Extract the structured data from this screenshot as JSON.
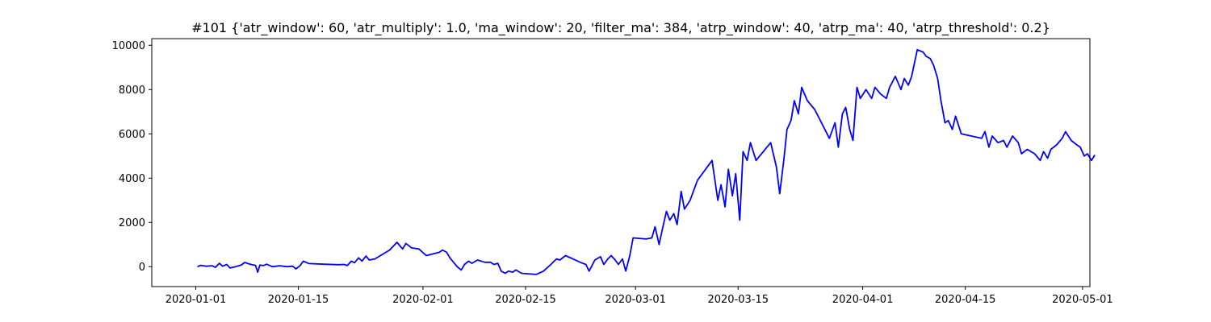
{
  "chart_data": {
    "type": "line",
    "title": "#101 {'atr_window': 60, 'atr_multiply': 1.0, 'ma_window': 20, 'filter_ma': 384, 'atrp_window': 40, 'atrp_ma': 40, 'atrp_threshold': 0.2}",
    "xlabel": "",
    "ylabel": "",
    "xlim": [
      "2019-12-26",
      "2020-05-02"
    ],
    "ylim": [
      -900,
      10300
    ],
    "grid": false,
    "legend": false,
    "series_color": "#0000ff",
    "x_ticks": [
      "2020-01-01",
      "2020-01-15",
      "2020-02-01",
      "2020-02-15",
      "2020-03-01",
      "2020-03-15",
      "2020-04-01",
      "2020-04-15",
      "2020-05-01"
    ],
    "y_ticks": [
      0,
      2000,
      4000,
      6000,
      8000,
      10000
    ],
    "series": [
      {
        "points": [
          [
            "2020-01-01",
            0
          ],
          [
            "2020-01-01",
            60
          ],
          [
            "2020-01-02",
            20
          ],
          [
            "2020-01-03",
            40
          ],
          [
            "2020-01-03",
            -30
          ],
          [
            "2020-01-04",
            150
          ],
          [
            "2020-01-04",
            20
          ],
          [
            "2020-01-05",
            100
          ],
          [
            "2020-01-05",
            -60
          ],
          [
            "2020-01-06",
            0
          ],
          [
            "2020-01-07",
            80
          ],
          [
            "2020-01-07",
            190
          ],
          [
            "2020-01-08",
            130
          ],
          [
            "2020-01-08",
            90
          ],
          [
            "2020-01-09",
            60
          ],
          [
            "2020-01-09",
            -250
          ],
          [
            "2020-01-09",
            70
          ],
          [
            "2020-01-10",
            50
          ],
          [
            "2020-01-10",
            110
          ],
          [
            "2020-01-11",
            0
          ],
          [
            "2020-01-12",
            40
          ],
          [
            "2020-01-13",
            0
          ],
          [
            "2020-01-14",
            20
          ],
          [
            "2020-01-14",
            -100
          ],
          [
            "2020-01-15",
            40
          ],
          [
            "2020-01-15",
            250
          ],
          [
            "2020-01-16",
            140
          ],
          [
            "2020-01-18",
            110
          ],
          [
            "2020-01-20",
            90
          ],
          [
            "2020-01-21",
            100
          ],
          [
            "2020-01-21",
            50
          ],
          [
            "2020-01-22",
            250
          ],
          [
            "2020-01-22",
            180
          ],
          [
            "2020-01-23",
            400
          ],
          [
            "2020-01-23",
            250
          ],
          [
            "2020-01-24",
            480
          ],
          [
            "2020-01-24",
            300
          ],
          [
            "2020-01-25",
            350
          ],
          [
            "2020-01-27",
            750
          ],
          [
            "2020-01-28",
            1100
          ],
          [
            "2020-01-29",
            800
          ],
          [
            "2020-01-29",
            1050
          ],
          [
            "2020-01-30",
            850
          ],
          [
            "2020-01-31",
            800
          ],
          [
            "2020-02-01",
            500
          ],
          [
            "2020-02-03",
            650
          ],
          [
            "2020-02-03",
            750
          ],
          [
            "2020-02-04",
            650
          ],
          [
            "2020-02-04",
            400
          ],
          [
            "2020-02-05",
            180
          ],
          [
            "2020-02-05",
            0
          ],
          [
            "2020-02-06",
            -150
          ],
          [
            "2020-02-06",
            100
          ],
          [
            "2020-02-07",
            250
          ],
          [
            "2020-02-07",
            150
          ],
          [
            "2020-02-08",
            300
          ],
          [
            "2020-02-09",
            200
          ],
          [
            "2020-02-10",
            200
          ],
          [
            "2020-02-10",
            100
          ],
          [
            "2020-02-11",
            150
          ],
          [
            "2020-02-11",
            -200
          ],
          [
            "2020-02-12",
            -300
          ],
          [
            "2020-02-12",
            -200
          ],
          [
            "2020-02-13",
            -250
          ],
          [
            "2020-02-13",
            -150
          ],
          [
            "2020-02-14",
            -300
          ],
          [
            "2020-02-16",
            -350
          ],
          [
            "2020-02-17",
            -200
          ],
          [
            "2020-02-18",
            100
          ],
          [
            "2020-02-19",
            350
          ],
          [
            "2020-02-19",
            300
          ],
          [
            "2020-02-20",
            500
          ],
          [
            "2020-02-21",
            350
          ],
          [
            "2020-02-22",
            200
          ],
          [
            "2020-02-23",
            100
          ],
          [
            "2020-02-23",
            -200
          ],
          [
            "2020-02-24",
            300
          ],
          [
            "2020-02-25",
            450
          ],
          [
            "2020-02-25",
            100
          ],
          [
            "2020-02-26",
            350
          ],
          [
            "2020-02-26",
            500
          ],
          [
            "2020-02-27",
            300
          ],
          [
            "2020-02-27",
            100
          ],
          [
            "2020-02-28",
            350
          ],
          [
            "2020-02-28",
            -200
          ],
          [
            "2020-02-29",
            500
          ],
          [
            "2020-02-29",
            1300
          ],
          [
            "2020-03-02",
            1250
          ],
          [
            "2020-03-03",
            1300
          ],
          [
            "2020-03-03",
            1800
          ],
          [
            "2020-03-04",
            1000
          ],
          [
            "2020-03-04",
            1700
          ],
          [
            "2020-03-05",
            2500
          ],
          [
            "2020-03-05",
            2100
          ],
          [
            "2020-03-06",
            2400
          ],
          [
            "2020-03-06",
            1900
          ],
          [
            "2020-03-07",
            3400
          ],
          [
            "2020-03-07",
            2600
          ],
          [
            "2020-03-08",
            3000
          ],
          [
            "2020-03-09",
            3900
          ],
          [
            "2020-03-11",
            4800
          ],
          [
            "2020-03-12",
            3000
          ],
          [
            "2020-03-12",
            3700
          ],
          [
            "2020-03-13",
            2700
          ],
          [
            "2020-03-13",
            4400
          ],
          [
            "2020-03-14",
            3200
          ],
          [
            "2020-03-14",
            4200
          ],
          [
            "2020-03-15",
            2100
          ],
          [
            "2020-03-15",
            5200
          ],
          [
            "2020-03-16",
            4800
          ],
          [
            "2020-03-16",
            5600
          ],
          [
            "2020-03-17",
            4800
          ],
          [
            "2020-03-19",
            5600
          ],
          [
            "2020-03-20",
            4500
          ],
          [
            "2020-03-20",
            3300
          ],
          [
            "2020-03-21",
            4800
          ],
          [
            "2020-03-21",
            6200
          ],
          [
            "2020-03-22",
            6600
          ],
          [
            "2020-03-22",
            7500
          ],
          [
            "2020-03-23",
            6900
          ],
          [
            "2020-03-23",
            8100
          ],
          [
            "2020-03-24",
            7500
          ],
          [
            "2020-03-25",
            7100
          ],
          [
            "2020-03-27",
            5800
          ],
          [
            "2020-03-28",
            6500
          ],
          [
            "2020-03-28",
            5400
          ],
          [
            "2020-03-29",
            6900
          ],
          [
            "2020-03-29",
            7200
          ],
          [
            "2020-03-30",
            6200
          ],
          [
            "2020-03-30",
            5700
          ],
          [
            "2020-03-31",
            8100
          ],
          [
            "2020-03-31",
            7600
          ],
          [
            "2020-04-01",
            8000
          ],
          [
            "2020-04-02",
            7600
          ],
          [
            "2020-04-02",
            8100
          ],
          [
            "2020-04-03",
            7800
          ],
          [
            "2020-04-04",
            7600
          ],
          [
            "2020-04-04",
            8100
          ],
          [
            "2020-04-05",
            8600
          ],
          [
            "2020-04-06",
            8000
          ],
          [
            "2020-04-06",
            8500
          ],
          [
            "2020-04-07",
            8200
          ],
          [
            "2020-04-07",
            8600
          ],
          [
            "2020-04-08",
            9800
          ],
          [
            "2020-04-09",
            9700
          ],
          [
            "2020-04-09",
            9500
          ],
          [
            "2020-04-10",
            9400
          ],
          [
            "2020-04-10",
            9100
          ],
          [
            "2020-04-11",
            8500
          ],
          [
            "2020-04-11",
            7500
          ],
          [
            "2020-04-12",
            6500
          ],
          [
            "2020-04-12",
            6600
          ],
          [
            "2020-04-13",
            6200
          ],
          [
            "2020-04-13",
            6800
          ],
          [
            "2020-04-14",
            6000
          ],
          [
            "2020-04-17",
            5800
          ],
          [
            "2020-04-17",
            6100
          ],
          [
            "2020-04-18",
            5400
          ],
          [
            "2020-04-18",
            5900
          ],
          [
            "2020-04-19",
            5600
          ],
          [
            "2020-04-20",
            5700
          ],
          [
            "2020-04-20",
            5400
          ],
          [
            "2020-04-21",
            5900
          ],
          [
            "2020-04-22",
            5600
          ],
          [
            "2020-04-22",
            5100
          ],
          [
            "2020-04-23",
            5300
          ],
          [
            "2020-04-24",
            5100
          ],
          [
            "2020-04-25",
            4800
          ],
          [
            "2020-04-25",
            5200
          ],
          [
            "2020-04-26",
            4900
          ],
          [
            "2020-04-26",
            5300
          ],
          [
            "2020-04-27",
            5500
          ],
          [
            "2020-04-28",
            5800
          ],
          [
            "2020-04-28",
            6100
          ],
          [
            "2020-04-29",
            5700
          ],
          [
            "2020-04-30",
            5500
          ],
          [
            "2020-04-30",
            5400
          ],
          [
            "2020-05-01",
            5000
          ],
          [
            "2020-05-01",
            5100
          ],
          [
            "2020-05-02",
            4800
          ],
          [
            "2020-05-02",
            5050
          ]
        ]
      }
    ]
  }
}
